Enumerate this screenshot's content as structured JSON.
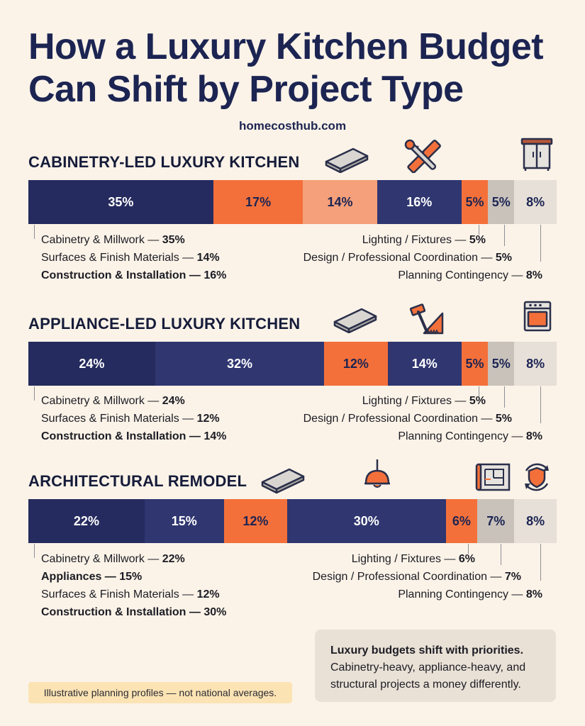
{
  "title_line1": "How a Luxury Kitchen Budget",
  "title_line2": "Can Shift by Project Type",
  "site": "homecosthub.com",
  "colors": {
    "navy": "#252b5e",
    "navy_mid": "#2f3670",
    "orange": "#f4703a",
    "salmon": "#f5a07a",
    "light_orange": "#f0864e",
    "gray": "#c8c2bb",
    "light_gray": "#e6e0d8",
    "background": "#fbf3e8"
  },
  "sections": [
    {
      "title": "CABINETRY-LED LUXURY KITCHEN",
      "left_labels": [
        {
          "text": "Cabinetry & Millwork — ",
          "value": "35%",
          "bold": false
        },
        {
          "text": "Surfaces & Finish Materials — ",
          "value": "14%",
          "bold": false
        },
        {
          "text": "Construction & Installation — ",
          "value": "16%",
          "bold": true
        }
      ],
      "right_labels": [
        {
          "text": "Lighting / Fixtures — ",
          "value": "5%"
        },
        {
          "text": "Design / Professional Coordination — ",
          "value": "5%"
        },
        {
          "text": "Planning Contingency — ",
          "value": "8%"
        }
      ],
      "icons": [
        "countertop-slab-icon",
        "ruler-wrench-icon",
        "cabinet-icon"
      ]
    },
    {
      "title": "APPLIANCE-LED LUXURY KITCHEN",
      "left_labels": [
        {
          "text": "Cabinetry & Millwork — ",
          "value": "24%",
          "bold": false
        },
        {
          "text": "Surfaces & Finish Materials — ",
          "value": "12%",
          "bold": false
        },
        {
          "text": "Construction & Installation — ",
          "value": "14%",
          "bold": true
        }
      ],
      "right_labels": [
        {
          "text": "Lighting / Fixtures — ",
          "value": "5%"
        },
        {
          "text": "Design / Professional Coordination — ",
          "value": "5%"
        },
        {
          "text": "Planning Contingency — ",
          "value": "8%"
        }
      ],
      "icons": [
        "countertop-slab-icon",
        "hammer-saw-icon",
        "oven-icon"
      ]
    },
    {
      "title": "ARCHITECTURAL REMODEL",
      "left_labels": [
        {
          "text": "Cabinetry & Millwork — ",
          "value": "22%",
          "bold": false
        },
        {
          "text": "Appliances — ",
          "value": "15%",
          "bold": true
        },
        {
          "text": "Surfaces & Finish Materials — ",
          "value": "12%",
          "bold": false
        },
        {
          "text": "Construction & Installation — ",
          "value": "30%",
          "bold": true
        }
      ],
      "right_labels": [
        {
          "text": "Lighting / Fixtures — ",
          "value": "6%"
        },
        {
          "text": "Design / Professional Coordination — ",
          "value": "7%"
        },
        {
          "text": "Planning Contingency — ",
          "value": "8%"
        }
      ],
      "icons": [
        "countertop-slab-icon",
        "pendant-lamp-icon",
        "blueprint-icon",
        "shield-refresh-icon"
      ]
    }
  ],
  "chart_data": [
    {
      "type": "bar",
      "title": "CABINETRY-LED LUXURY KITCHEN",
      "stacked": true,
      "orientation": "horizontal",
      "segments": [
        {
          "value": 35,
          "label": "35%",
          "color": "#252b5e",
          "text_color": "#ffffff"
        },
        {
          "value": 17,
          "label": "17%",
          "color": "#f4703a",
          "text_color": "#1c2452"
        },
        {
          "value": 14,
          "label": "14%",
          "color": "#f5a07a",
          "text_color": "#1c2452"
        },
        {
          "value": 16,
          "label": "16%",
          "color": "#2f3670",
          "text_color": "#ffffff"
        },
        {
          "value": 5,
          "label": "5%",
          "color": "#f4703a",
          "text_color": "#1c2452"
        },
        {
          "value": 5,
          "label": "5%",
          "color": "#c8c2bb",
          "text_color": "#1c2452"
        },
        {
          "value": 8,
          "label": "8%",
          "color": "#e6e0d8",
          "text_color": "#1c2452"
        }
      ]
    },
    {
      "type": "bar",
      "title": "APPLIANCE-LED LUXURY KITCHEN",
      "stacked": true,
      "orientation": "horizontal",
      "segments": [
        {
          "value": 24,
          "label": "24%",
          "color": "#252b5e",
          "text_color": "#ffffff"
        },
        {
          "value": 32,
          "label": "32%",
          "color": "#2f3670",
          "text_color": "#ffffff"
        },
        {
          "value": 12,
          "label": "12%",
          "color": "#f4703a",
          "text_color": "#1c2452"
        },
        {
          "value": 14,
          "label": "14%",
          "color": "#2f3670",
          "text_color": "#ffffff"
        },
        {
          "value": 5,
          "label": "5%",
          "color": "#f4703a",
          "text_color": "#1c2452"
        },
        {
          "value": 5,
          "label": "5%",
          "color": "#c8c2bb",
          "text_color": "#1c2452"
        },
        {
          "value": 8,
          "label": "8%",
          "color": "#e6e0d8",
          "text_color": "#1c2452"
        }
      ]
    },
    {
      "type": "bar",
      "title": "ARCHITECTURAL REMODEL",
      "stacked": true,
      "orientation": "horizontal",
      "segments": [
        {
          "value": 22,
          "label": "22%",
          "color": "#252b5e",
          "text_color": "#ffffff"
        },
        {
          "value": 15,
          "label": "15%",
          "color": "#2f3670",
          "text_color": "#ffffff"
        },
        {
          "value": 12,
          "label": "12%",
          "color": "#f4703a",
          "text_color": "#1c2452"
        },
        {
          "value": 30,
          "label": "30%",
          "color": "#2f3670",
          "text_color": "#ffffff"
        },
        {
          "value": 6,
          "label": "6%",
          "color": "#f4703a",
          "text_color": "#1c2452"
        },
        {
          "value": 7,
          "label": "7%",
          "color": "#c8c2bb",
          "text_color": "#1c2452"
        },
        {
          "value": 8,
          "label": "8%",
          "color": "#e6e0d8",
          "text_color": "#1c2452"
        }
      ]
    }
  ],
  "note": "Illustrative planning profiles — not national averages.",
  "callout": {
    "heading": "Luxury budgets shift with priorities.",
    "line1": "Cabinetry-heavy, appliance-heavy, and",
    "line2": "structural projects a money differently."
  }
}
